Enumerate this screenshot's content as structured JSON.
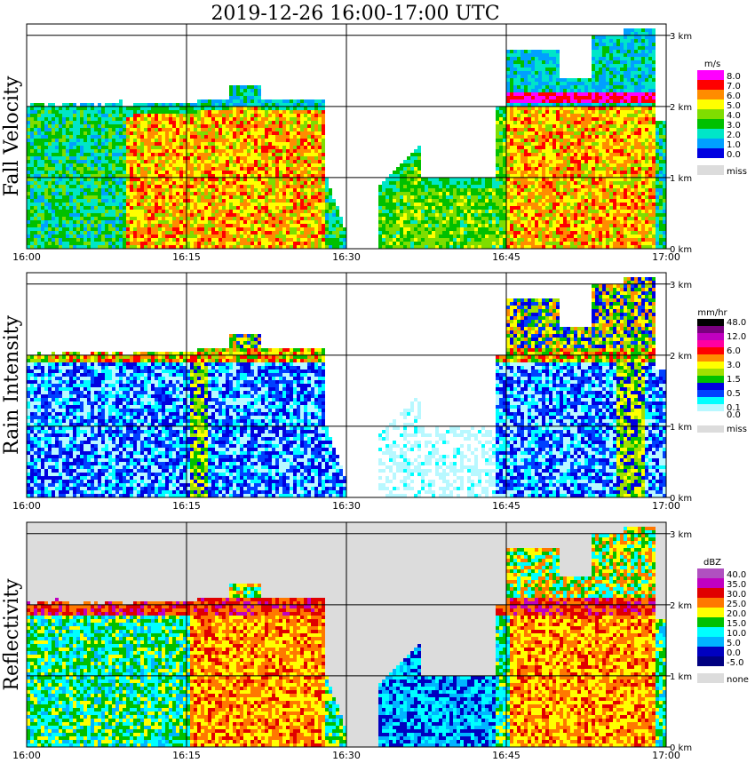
{
  "title": "2019-12-26   16:00-17:00 UTC",
  "time_ticks": [
    "16:00",
    "16:15",
    "16:30",
    "16:45",
    "17:00"
  ],
  "height_ticks": [
    "0 km",
    "1 km",
    "2 km",
    "3 km"
  ],
  "panels": [
    {
      "ylabel": "Fall Velocity",
      "unit": "m/s",
      "legend": [
        {
          "label": "8.0",
          "color": "#ff00ff"
        },
        {
          "label": "7.0",
          "color": "#ff0000"
        },
        {
          "label": "6.0",
          "color": "#ff8c00"
        },
        {
          "label": "5.0",
          "color": "#ffff00"
        },
        {
          "label": "4.0",
          "color": "#7fdd00"
        },
        {
          "label": "3.0",
          "color": "#00c000"
        },
        {
          "label": "2.0",
          "color": "#00e6c8"
        },
        {
          "label": "1.0",
          "color": "#00a0ff"
        },
        {
          "label": "0.0",
          "color": "#0000e0"
        },
        {
          "label": "miss",
          "color": "#dcdcdc"
        }
      ]
    },
    {
      "ylabel": "Rain Intensity",
      "unit": "mm/hr",
      "legend": [
        {
          "label": "48.0",
          "color": "#000000"
        },
        {
          "label": "",
          "color": "#7a0080"
        },
        {
          "label": "12.0",
          "color": "#c000c0"
        },
        {
          "label": "",
          "color": "#ff00a0"
        },
        {
          "label": "6.0",
          "color": "#ff0000"
        },
        {
          "label": "",
          "color": "#ff8c00"
        },
        {
          "label": "3.0",
          "color": "#ffff00"
        },
        {
          "label": "",
          "color": "#a0e000"
        },
        {
          "label": "1.5",
          "color": "#00c000"
        },
        {
          "label": "",
          "color": "#0000e0"
        },
        {
          "label": "0.5",
          "color": "#0040ff"
        },
        {
          "label": "",
          "color": "#00ffff"
        },
        {
          "label": "0.1",
          "color": "#b8f8ff"
        },
        {
          "label": "0.0",
          "color": "#ffffff"
        },
        {
          "label": "miss",
          "color": "#dcdcdc"
        }
      ]
    },
    {
      "ylabel": "Reflectivity",
      "unit": "dBZ",
      "legend": [
        {
          "label": "40.0",
          "color": "#b050c0"
        },
        {
          "label": "35.0",
          "color": "#c000c0"
        },
        {
          "label": "30.0",
          "color": "#e00000"
        },
        {
          "label": "25.0",
          "color": "#ff7800"
        },
        {
          "label": "20.0",
          "color": "#ffff00"
        },
        {
          "label": "15.0",
          "color": "#00c000"
        },
        {
          "label": "10.0",
          "color": "#00ffff"
        },
        {
          "label": "5.0",
          "color": "#00b4ff"
        },
        {
          "label": "0.0",
          "color": "#0000c0"
        },
        {
          "label": "-5.0",
          "color": "#000080"
        },
        {
          "label": "none",
          "color": "#dcdcdc"
        }
      ]
    }
  ],
  "chart_data": {
    "type": "heatmap",
    "title": "2019-12-26   16:00-17:00 UTC",
    "x_range": [
      "16:00",
      "17:00"
    ],
    "y_range_km": [
      0,
      3.1
    ],
    "panels": [
      "Fall Velocity",
      "Rain Intensity",
      "Reflectivity"
    ]
  }
}
